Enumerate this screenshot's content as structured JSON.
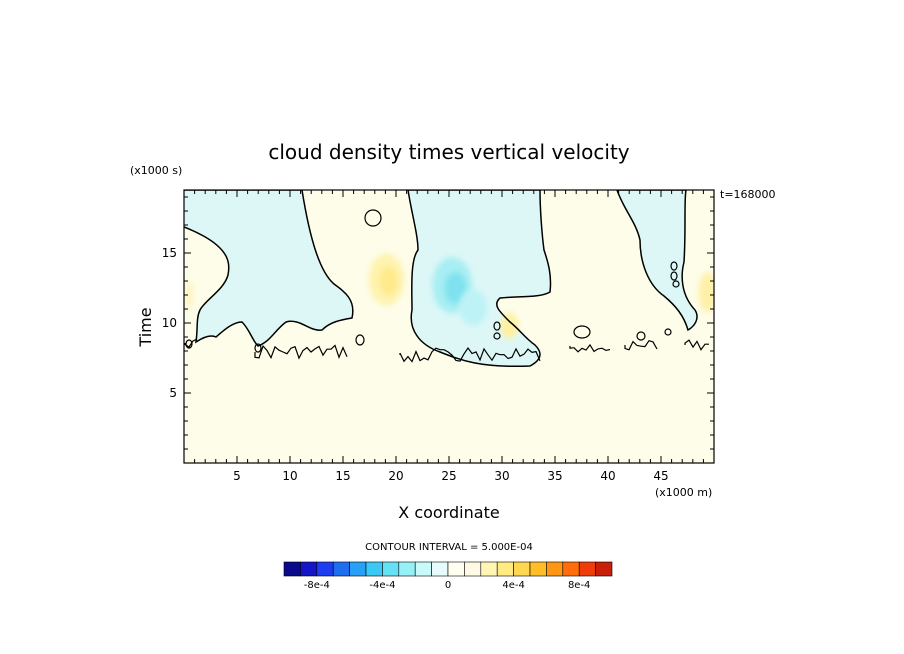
{
  "chart_data": {
    "type": "heatmap",
    "title": "cloud density times vertical velocity",
    "xlabel": "X coordinate",
    "ylabel": "Time",
    "x_unit_label": "(x1000 m)",
    "y_unit_label": "(x1000 s)",
    "time_stamp": "t=168000",
    "contour_interval_label": "CONTOUR INTERVAL = 5.000E-04",
    "xlim": [
      0,
      50
    ],
    "ylim": [
      0,
      19.5
    ],
    "x_ticks": [
      5,
      10,
      15,
      20,
      25,
      30,
      35,
      40,
      45
    ],
    "x_tick_labels": [
      "5",
      "10",
      "15",
      "20",
      "25",
      "30",
      "35",
      "40",
      "45"
    ],
    "y_ticks": [
      5,
      10,
      15
    ],
    "y_tick_labels": [
      "5",
      "10",
      "15"
    ],
    "colorbar": {
      "levels": [
        -0.001,
        -0.0009,
        -0.0008,
        -0.0007,
        -0.0006,
        -0.0005,
        -0.0004,
        -0.0003,
        -0.0002,
        -0.0001,
        0,
        0.0001,
        0.0002,
        0.0003,
        0.0004,
        0.0005,
        0.0006,
        0.0007,
        0.0008,
        0.0009,
        0.001
      ],
      "colors": [
        "#0a0a8c",
        "#1414c8",
        "#1e3cf0",
        "#1e6ef0",
        "#28a0f5",
        "#3cc8f5",
        "#64e1f5",
        "#96f0f5",
        "#c8fafa",
        "#e6fcfc",
        "#fffff0",
        "#fffae6",
        "#fff5b4",
        "#ffeb82",
        "#ffd750",
        "#ffbe28",
        "#ff9614",
        "#ff6e0a",
        "#f03c0a",
        "#c81e0a"
      ],
      "tick_values": [
        -0.0008,
        -0.0004,
        0,
        0.0004,
        0.0008
      ],
      "tick_labels": [
        "-8e-4",
        "-4e-4",
        "0",
        "4e-4",
        "8e-4"
      ]
    },
    "background": "#fdfde9",
    "features": [
      {
        "type": "negative",
        "x": [
          1.5,
          12.5
        ],
        "y": [
          9.2,
          19.5
        ],
        "color": "#ddf7f7"
      },
      {
        "type": "negative",
        "x": [
          21,
          34
        ],
        "y": [
          7.3,
          19.5
        ],
        "color": "#ddf7f7"
      },
      {
        "type": "negative",
        "x": [
          40,
          47
        ],
        "y": [
          9.0,
          19.5
        ],
        "color": "#ddf7f7"
      },
      {
        "type": "min",
        "x": 25.3,
        "y": 12.7,
        "value": -0.0004,
        "color": "#a8eef3"
      },
      {
        "type": "max",
        "x": 19,
        "y": 13.2,
        "value": 0.0003,
        "color": "#fff3b0"
      },
      {
        "type": "max",
        "x": 30.7,
        "y": 9.8,
        "value": 0.0002,
        "color": "#fff7c8"
      },
      {
        "type": "max",
        "x": 49.2,
        "y": 12.1,
        "value": 0.0002,
        "color": "#fff7c8"
      }
    ]
  }
}
